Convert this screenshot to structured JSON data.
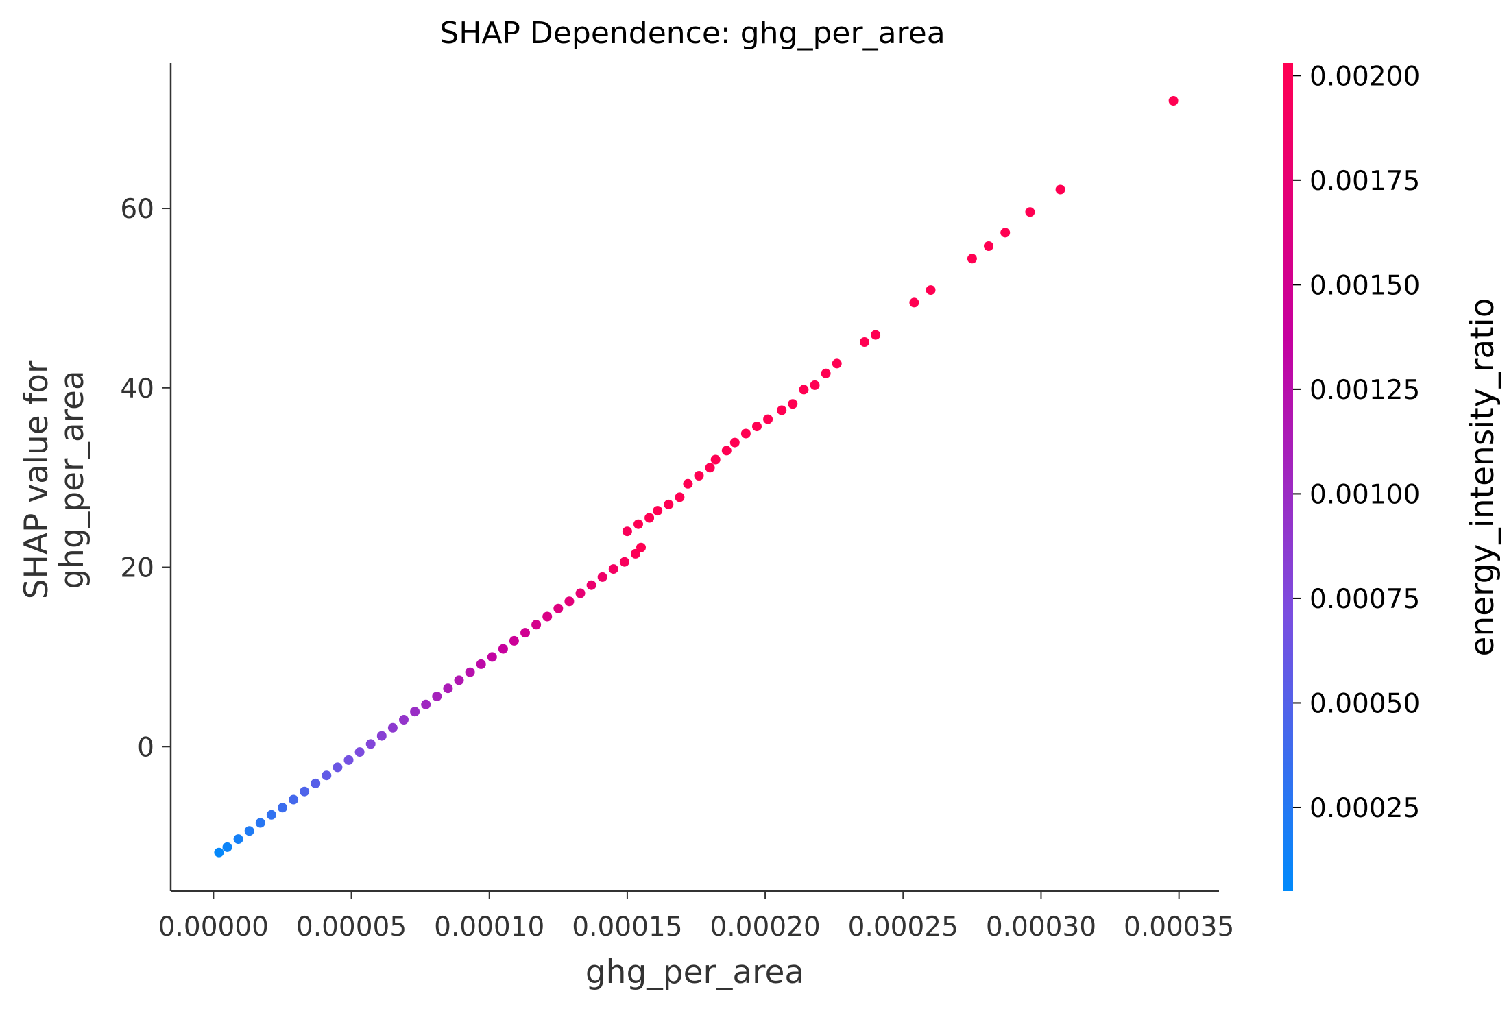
{
  "chart_data": {
    "type": "scatter",
    "title": "SHAP Dependence: ghg_per_area",
    "xlabel": "ghg_per_area",
    "ylabel": [
      "SHAP value for",
      "ghg_per_area"
    ],
    "xlim": [
      -1.55e-05,
      0.0003645
    ],
    "ylim": [
      -16.1,
      76.2
    ],
    "x_ticks": [
      0.0,
      5e-05,
      0.0001,
      0.00015,
      0.0002,
      0.00025,
      0.0003,
      0.00035
    ],
    "x_tick_labels": [
      "0.00000",
      "0.00005",
      "0.00010",
      "0.00015",
      "0.00020",
      "0.00025",
      "0.00030",
      "0.00035"
    ],
    "y_ticks": [
      0,
      20,
      40,
      60
    ],
    "y_tick_labels": [
      "0",
      "20",
      "40",
      "60"
    ],
    "grid": false,
    "colorbar": {
      "label": "energy_intensity_ratio",
      "range": [
        5e-05,
        0.00203
      ],
      "ticks": [
        0.00025,
        0.0005,
        0.00075,
        0.001,
        0.00125,
        0.0015,
        0.00175,
        0.002
      ],
      "tick_labels": [
        "0.00025",
        "0.00050",
        "0.00075",
        "0.00100",
        "0.00125",
        "0.00150",
        "0.00175",
        "0.00200"
      ],
      "colors": [
        "#008afb",
        "#7a4ee0",
        "#c5009f",
        "#ff0052"
      ]
    },
    "series": [
      {
        "points": [
          [
            2e-06,
            -11.8
          ],
          [
            5e-06,
            -11.2
          ],
          [
            9e-06,
            -10.3
          ],
          [
            1.3e-05,
            -9.4
          ],
          [
            1.7e-05,
            -8.5
          ],
          [
            2.1e-05,
            -7.6
          ],
          [
            2.5e-05,
            -6.8
          ],
          [
            2.9e-05,
            -5.9
          ],
          [
            3.3e-05,
            -5.0
          ],
          [
            3.7e-05,
            -4.1
          ],
          [
            4.1e-05,
            -3.2
          ],
          [
            4.5e-05,
            -2.3
          ],
          [
            4.9e-05,
            -1.5
          ],
          [
            5.3e-05,
            -0.6
          ],
          [
            5.7e-05,
            0.3
          ],
          [
            6.1e-05,
            1.2
          ],
          [
            6.5e-05,
            2.1
          ],
          [
            6.9e-05,
            3.0
          ],
          [
            7.3e-05,
            3.9
          ],
          [
            7.7e-05,
            4.7
          ],
          [
            8.1e-05,
            5.6
          ],
          [
            8.5e-05,
            6.5
          ],
          [
            8.9e-05,
            7.4
          ],
          [
            9.3e-05,
            8.3
          ],
          [
            9.7e-05,
            9.2
          ],
          [
            0.000101,
            10.0
          ],
          [
            0.000105,
            10.9
          ],
          [
            0.000109,
            11.8
          ],
          [
            0.000113,
            12.7
          ],
          [
            0.000117,
            13.6
          ],
          [
            0.000121,
            14.5
          ],
          [
            0.000125,
            15.4
          ],
          [
            0.000129,
            16.2
          ],
          [
            0.000133,
            17.1
          ],
          [
            0.000137,
            18.0
          ],
          [
            0.000141,
            18.9
          ],
          [
            0.000145,
            19.8
          ],
          [
            0.000149,
            20.6
          ],
          [
            0.000153,
            21.5
          ],
          [
            0.000155,
            22.2
          ],
          [
            0.00015,
            24.0
          ],
          [
            0.000154,
            24.8
          ],
          [
            0.000158,
            25.5
          ],
          [
            0.000161,
            26.3
          ],
          [
            0.000165,
            27.0
          ],
          [
            0.000169,
            27.8
          ],
          [
            0.000172,
            29.3
          ],
          [
            0.000176,
            30.2
          ],
          [
            0.00018,
            31.1
          ],
          [
            0.000182,
            32.0
          ],
          [
            0.000186,
            33.0
          ],
          [
            0.000189,
            33.9
          ],
          [
            0.000193,
            34.9
          ],
          [
            0.000197,
            35.7
          ],
          [
            0.000201,
            36.5
          ],
          [
            0.000206,
            37.5
          ],
          [
            0.00021,
            38.2
          ],
          [
            0.000214,
            39.8
          ],
          [
            0.000218,
            40.3
          ],
          [
            0.000222,
            41.6
          ],
          [
            0.000226,
            42.7
          ],
          [
            0.000236,
            45.1
          ],
          [
            0.00024,
            45.9
          ],
          [
            0.000254,
            49.5
          ],
          [
            0.00026,
            50.9
          ],
          [
            0.000275,
            54.4
          ],
          [
            0.000281,
            55.8
          ],
          [
            0.000287,
            57.3
          ],
          [
            0.000296,
            59.6
          ],
          [
            0.000307,
            62.1
          ],
          [
            0.000348,
            72.0
          ]
        ]
      }
    ]
  }
}
